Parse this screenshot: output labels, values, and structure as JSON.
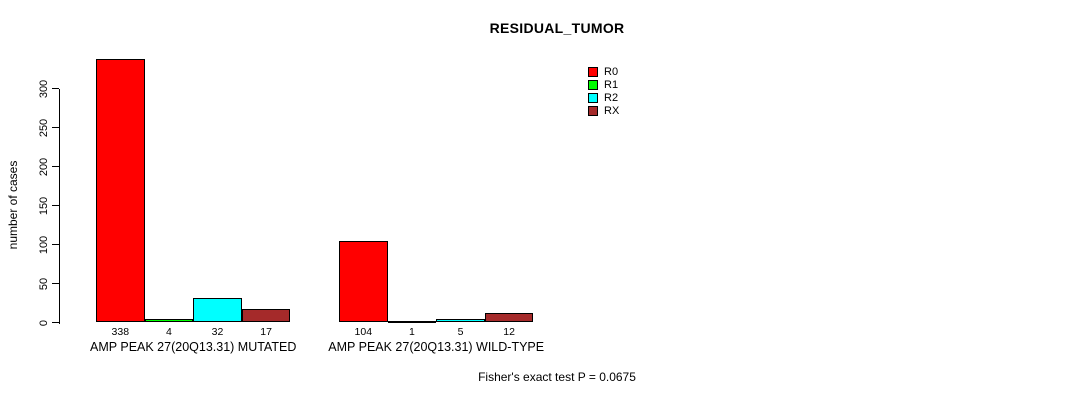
{
  "title": "RESIDUAL_TUMOR",
  "ylabel": "number of cases",
  "footer": "Fisher's exact test P = 0.0675",
  "legend": {
    "position": "top-right",
    "items": [
      {
        "label": "R0",
        "color": "#ff0000"
      },
      {
        "label": "R1",
        "color": "#00ff00"
      },
      {
        "label": "R2",
        "color": "#00ffff"
      },
      {
        "label": "RX",
        "color": "#a52a2a"
      }
    ]
  },
  "chart_data": {
    "type": "bar",
    "title": "RESIDUAL_TUMOR",
    "xlabel": "",
    "ylabel": "number of cases",
    "categories": [
      "AMP PEAK 27(20Q13.31) MUTATED",
      "AMP PEAK 27(20Q13.31) WILD-TYPE"
    ],
    "series": [
      {
        "name": "R0",
        "color": "#ff0000",
        "values": [
          338,
          104
        ]
      },
      {
        "name": "R1",
        "color": "#00ff00",
        "values": [
          4,
          1
        ]
      },
      {
        "name": "R2",
        "color": "#00ffff",
        "values": [
          32,
          5
        ]
      },
      {
        "name": "RX",
        "color": "#a52a2a",
        "values": [
          17,
          12
        ]
      }
    ],
    "bar_value_labels": [
      [
        338,
        4,
        32,
        17
      ],
      [
        104,
        1,
        5,
        12
      ]
    ],
    "ylim": [
      0,
      300
    ],
    "yticks": [
      0,
      50,
      100,
      150,
      200,
      250,
      300
    ],
    "grid": false,
    "legend_position": "top-right",
    "annotation": "Fisher's exact test P = 0.0675"
  }
}
